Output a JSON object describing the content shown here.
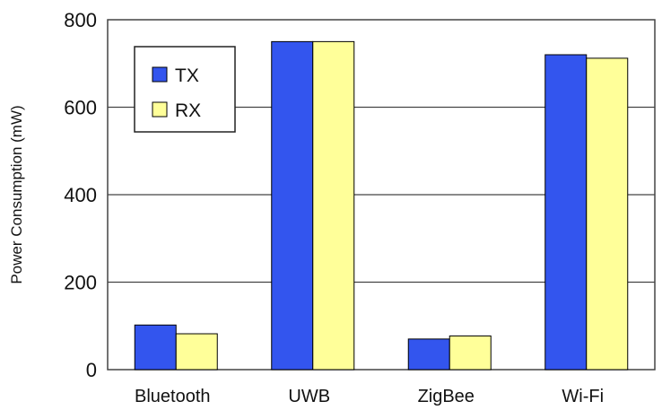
{
  "chart_data": {
    "type": "bar",
    "title": "",
    "xlabel": "",
    "ylabel": "Power Consumption (mW)",
    "categories": [
      "Bluetooth",
      "UWB",
      "ZigBee",
      "Wi-Fi"
    ],
    "series": [
      {
        "name": "TX",
        "values": [
          102,
          750,
          70,
          720
        ],
        "color": "#3355ee"
      },
      {
        "name": "RX",
        "values": [
          82,
          750,
          77,
          712
        ],
        "color": "#ffff99"
      }
    ],
    "ylim": [
      0,
      800
    ],
    "yticks": [
      0,
      200,
      400,
      600,
      800
    ],
    "grid": true,
    "legend_position": "top-left"
  }
}
